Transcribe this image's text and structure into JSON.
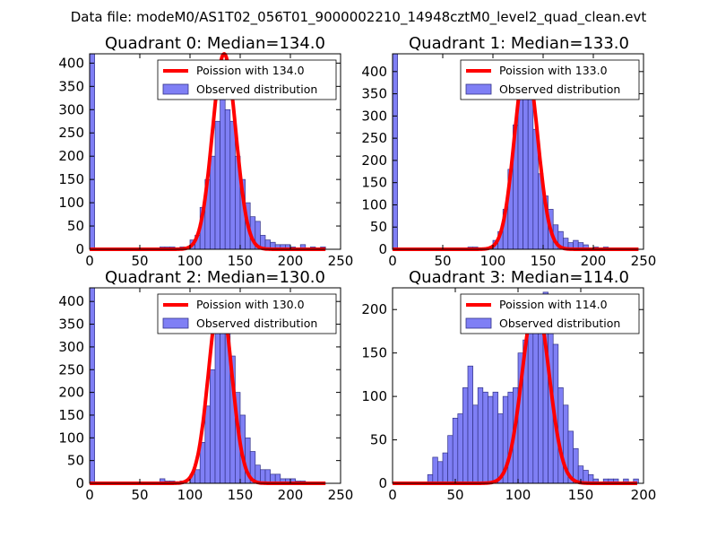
{
  "suptitle": "Data file: modeM0/AS1T02_056T01_9000002210_14948cztM0_level2_quad_clean.evt",
  "chart_data": [
    {
      "type": "bar",
      "title": "Quadrant 0: Median=134.0",
      "xlim": [
        0,
        250
      ],
      "ylim": [
        0,
        420
      ],
      "xticks": [
        0,
        50,
        100,
        150,
        200,
        250
      ],
      "yticks": [
        0,
        50,
        100,
        150,
        200,
        250,
        300,
        350,
        400
      ],
      "bin_width": 5,
      "bins": [
        [
          0,
          420
        ],
        [
          70,
          5
        ],
        [
          75,
          5
        ],
        [
          80,
          5
        ],
        [
          90,
          5
        ],
        [
          100,
          20
        ],
        [
          105,
          30
        ],
        [
          110,
          90
        ],
        [
          115,
          150
        ],
        [
          120,
          200
        ],
        [
          125,
          275
        ],
        [
          130,
          350
        ],
        [
          135,
          300
        ],
        [
          140,
          275
        ],
        [
          145,
          200
        ],
        [
          150,
          150
        ],
        [
          155,
          100
        ],
        [
          160,
          70
        ],
        [
          165,
          60
        ],
        [
          170,
          30
        ],
        [
          175,
          20
        ],
        [
          180,
          15
        ],
        [
          185,
          10
        ],
        [
          190,
          10
        ],
        [
          195,
          10
        ],
        [
          200,
          5
        ],
        [
          210,
          10
        ],
        [
          220,
          5
        ],
        [
          230,
          5
        ]
      ],
      "fit_mean": 134.0,
      "fit_peak": 420,
      "fit_range": [
        0,
        235
      ],
      "legend": [
        "Poission with 134.0",
        "Observed distribution"
      ]
    },
    {
      "type": "bar",
      "title": "Quadrant 1: Median=133.0",
      "xlim": [
        0,
        250
      ],
      "ylim": [
        0,
        440
      ],
      "xticks": [
        0,
        50,
        100,
        150,
        200,
        250
      ],
      "yticks": [
        0,
        50,
        100,
        150,
        200,
        250,
        300,
        350,
        400
      ],
      "bin_width": 5,
      "bins": [
        [
          0,
          440
        ],
        [
          75,
          5
        ],
        [
          80,
          5
        ],
        [
          95,
          5
        ],
        [
          100,
          20
        ],
        [
          105,
          40
        ],
        [
          110,
          90
        ],
        [
          115,
          180
        ],
        [
          120,
          280
        ],
        [
          125,
          355
        ],
        [
          130,
          410
        ],
        [
          135,
          360
        ],
        [
          140,
          270
        ],
        [
          145,
          170
        ],
        [
          150,
          120
        ],
        [
          155,
          90
        ],
        [
          160,
          55
        ],
        [
          165,
          40
        ],
        [
          170,
          25
        ],
        [
          175,
          15
        ],
        [
          180,
          20
        ],
        [
          185,
          15
        ],
        [
          190,
          10
        ],
        [
          200,
          5
        ],
        [
          210,
          5
        ]
      ],
      "fit_mean": 133.0,
      "fit_peak": 420,
      "fit_range": [
        0,
        245
      ],
      "legend": [
        "Poission with 133.0",
        "Observed distribution"
      ]
    },
    {
      "type": "bar",
      "title": "Quadrant 2: Median=130.0",
      "xlim": [
        0,
        250
      ],
      "ylim": [
        0,
        430
      ],
      "xticks": [
        0,
        50,
        100,
        150,
        200,
        250
      ],
      "yticks": [
        0,
        50,
        100,
        150,
        200,
        250,
        300,
        350,
        400
      ],
      "bin_width": 5,
      "bins": [
        [
          0,
          430
        ],
        [
          70,
          10
        ],
        [
          75,
          5
        ],
        [
          80,
          5
        ],
        [
          90,
          5
        ],
        [
          100,
          20
        ],
        [
          105,
          30
        ],
        [
          110,
          90
        ],
        [
          115,
          170
        ],
        [
          120,
          250
        ],
        [
          125,
          340
        ],
        [
          130,
          395
        ],
        [
          135,
          370
        ],
        [
          140,
          280
        ],
        [
          145,
          200
        ],
        [
          150,
          150
        ],
        [
          155,
          100
        ],
        [
          160,
          70
        ],
        [
          165,
          40
        ],
        [
          170,
          30
        ],
        [
          175,
          30
        ],
        [
          180,
          20
        ],
        [
          185,
          20
        ],
        [
          190,
          10
        ],
        [
          195,
          10
        ],
        [
          200,
          10
        ],
        [
          205,
          5
        ],
        [
          210,
          5
        ]
      ],
      "fit_mean": 130.0,
      "fit_peak": 410,
      "fit_range": [
        0,
        235
      ],
      "legend": [
        "Poission with 130.0",
        "Observed distribution"
      ]
    },
    {
      "type": "bar",
      "title": "Quadrant 3: Median=114.0",
      "xlim": [
        0,
        200
      ],
      "ylim": [
        0,
        225
      ],
      "xticks": [
        0,
        50,
        100,
        150,
        200
      ],
      "yticks": [
        0,
        50,
        100,
        150,
        200
      ],
      "bin_width": 4,
      "bins": [
        [
          28,
          10
        ],
        [
          32,
          30
        ],
        [
          36,
          25
        ],
        [
          40,
          35
        ],
        [
          44,
          55
        ],
        [
          48,
          75
        ],
        [
          52,
          80
        ],
        [
          56,
          110
        ],
        [
          60,
          135
        ],
        [
          64,
          90
        ],
        [
          68,
          110
        ],
        [
          72,
          105
        ],
        [
          76,
          100
        ],
        [
          80,
          105
        ],
        [
          84,
          80
        ],
        [
          88,
          100
        ],
        [
          92,
          105
        ],
        [
          96,
          110
        ],
        [
          100,
          150
        ],
        [
          104,
          165
        ],
        [
          108,
          175
        ],
        [
          112,
          190
        ],
        [
          116,
          200
        ],
        [
          120,
          220
        ],
        [
          124,
          200
        ],
        [
          128,
          160
        ],
        [
          132,
          110
        ],
        [
          136,
          90
        ],
        [
          140,
          60
        ],
        [
          144,
          40
        ],
        [
          148,
          20
        ],
        [
          152,
          15
        ],
        [
          156,
          10
        ],
        [
          160,
          5
        ],
        [
          168,
          5
        ],
        [
          172,
          5
        ],
        [
          176,
          5
        ],
        [
          184,
          5
        ],
        [
          192,
          5
        ]
      ],
      "fit_mean": 114.0,
      "fit_peak": 210,
      "fit_range": [
        0,
        195
      ],
      "legend": [
        "Poission with 114.0",
        "Observed distribution"
      ]
    }
  ],
  "colors": {
    "bar_fill": "#7f7ff5",
    "bar_edge": "#333388",
    "fit_line": "#ff0000"
  }
}
